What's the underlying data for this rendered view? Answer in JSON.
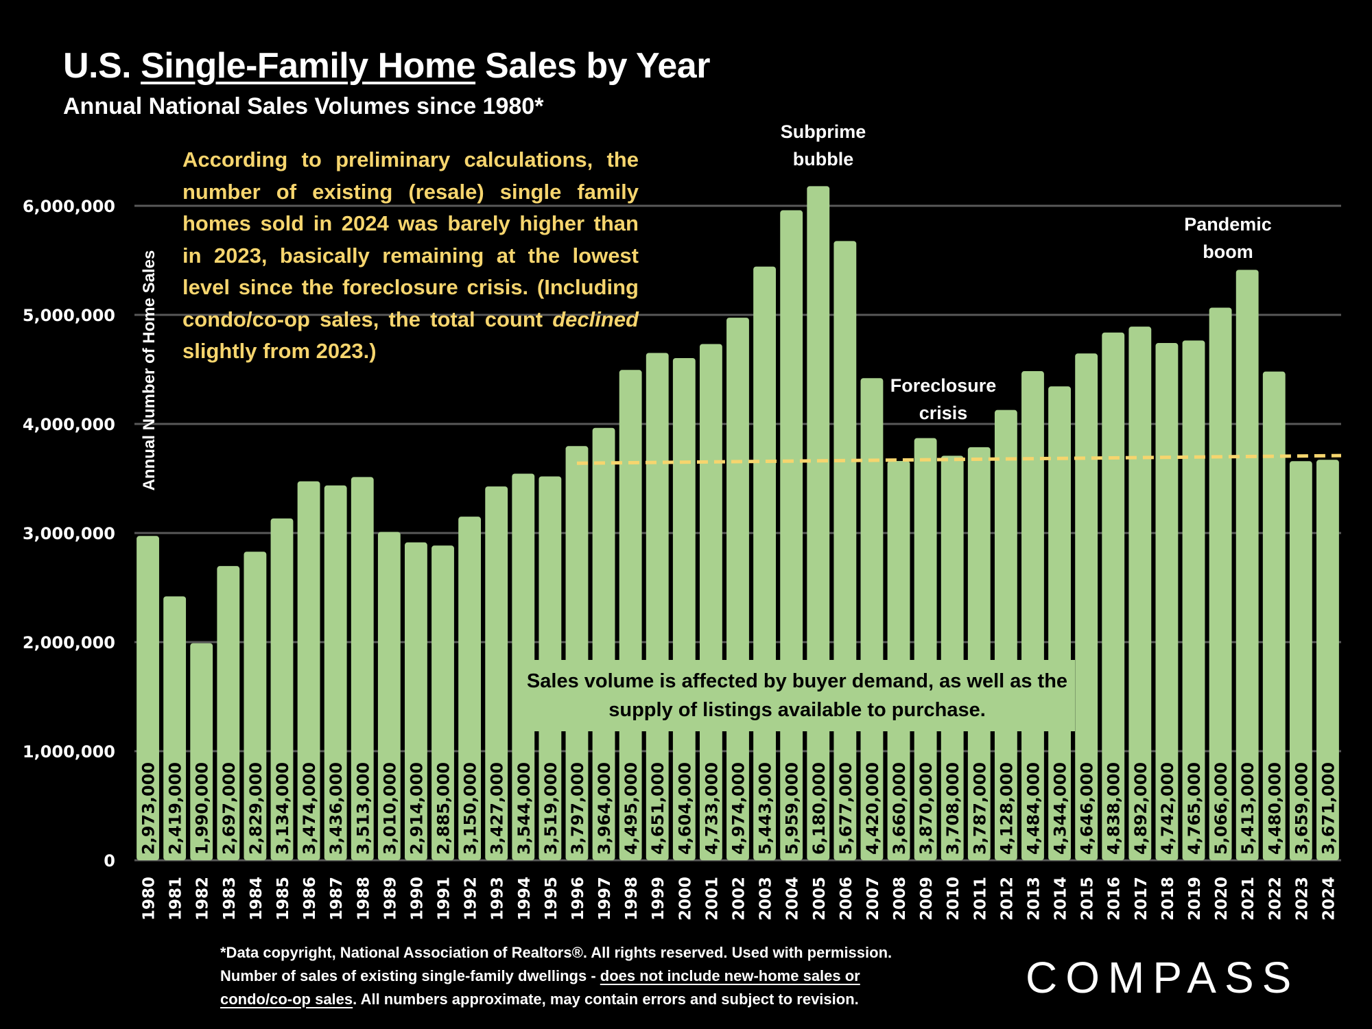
{
  "page": {
    "title_prefix": "U.S. ",
    "title_underlined": "Single-Family Home",
    "title_suffix": " Sales by Year",
    "subtitle": "Annual National Sales Volumes since 1980*",
    "note_part1": "According to preliminary calculations, the number of existing (resale) single family homes sold in 2024 was barely higher than in 2023, basically remaining at the lowest level since the foreclosure crisis. (Including condo/co-op sales, the total count ",
    "note_italic": "declined",
    "note_part2": " slightly from 2023.)",
    "callout": "Sales volume is affected by buyer demand, as well as the supply of listings available to purchase.",
    "footnote_line1": "*Data copyright, National Association of Realtors®. All rights reserved. Used with permission.",
    "footnote_line2_plain": "Number of sales of existing single-family dwellings - ",
    "footnote_line2_underlined": "does not include new-home sales or",
    "footnote_line3_underlined": "condo/co-op sales",
    "footnote_line3_plain": ". All numbers approximate, may contain errors and subject to revision.",
    "logo": "COMPASS"
  },
  "colors": {
    "bar": "#a9d18e",
    "trend": "#f6d56e",
    "grid": "#595959",
    "background": "#000000",
    "note_text": "#f6d56e"
  },
  "chart_data": {
    "type": "bar",
    "title": "U.S. Single-Family Home Sales by Year",
    "subtitle": "Annual National Sales Volumes since 1980*",
    "xlabel": "",
    "ylabel": "Annual Number of Home Sales",
    "ylim": [
      0,
      6000000
    ],
    "yticks": [
      0,
      1000000,
      2000000,
      3000000,
      4000000,
      5000000,
      6000000
    ],
    "ytick_labels": [
      "0",
      "1,000,000",
      "2,000,000",
      "3,000,000",
      "4,000,000",
      "5,000,000",
      "6,000,000"
    ],
    "grid": true,
    "categories": [
      "1980",
      "1981",
      "1982",
      "1983",
      "1984",
      "1985",
      "1986",
      "1987",
      "1988",
      "1989",
      "1990",
      "1991",
      "1992",
      "1993",
      "1994",
      "1995",
      "1996",
      "1997",
      "1998",
      "1999",
      "2000",
      "2001",
      "2002",
      "2003",
      "2004",
      "2005",
      "2006",
      "2007",
      "2008",
      "2009",
      "2010",
      "2011",
      "2012",
      "2013",
      "2014",
      "2015",
      "2016",
      "2017",
      "2018",
      "2019",
      "2020",
      "2021",
      "2022",
      "2023",
      "2024"
    ],
    "values": [
      2973000,
      2419000,
      1990000,
      2697000,
      2829000,
      3134000,
      3474000,
      3436000,
      3513000,
      3010000,
      2914000,
      2885000,
      3150000,
      3427000,
      3544000,
      3519000,
      3797000,
      3964000,
      4495000,
      4651000,
      4604000,
      4733000,
      4974000,
      5443000,
      5959000,
      6180000,
      5677000,
      4420000,
      3660000,
      3870000,
      3708000,
      3787000,
      4128000,
      4484000,
      4344000,
      4646000,
      4838000,
      4892000,
      4742000,
      4765000,
      5066000,
      5413000,
      4480000,
      3659000,
      3671000
    ],
    "data_labels": [
      "2,973,000",
      "2,419,000",
      "1,990,000",
      "2,697,000",
      "2,829,000",
      "3,134,000",
      "3,474,000",
      "3,436,000",
      "3,513,000",
      "3,010,000",
      "2,914,000",
      "2,885,000",
      "3,150,000",
      "3,427,000",
      "3,544,000",
      "3,519,000",
      "3,797,000",
      "3,964,000",
      "4,495,000",
      "4,651,000",
      "4,604,000",
      "4,733,000",
      "4,974,000",
      "5,443,000",
      "5,959,000",
      "6,180,000",
      "5,677,000",
      "4,420,000",
      "3,660,000",
      "3,870,000",
      "3,708,000",
      "3,787,000",
      "4,128,000",
      "4,484,000",
      "4,344,000",
      "4,646,000",
      "4,838,000",
      "4,892,000",
      "4,742,000",
      "4,765,000",
      "5,066,000",
      "5,413,000",
      "4,480,000",
      "3,659,000",
      "3,671,000"
    ],
    "reference_line": {
      "style": "dashed",
      "from_category": "1996",
      "to_category": "2024",
      "start_value": 3640000,
      "end_value": 3710000
    },
    "annotations": [
      {
        "text": "Subprime bubble",
        "near": "2005"
      },
      {
        "text": "Foreclosure crisis",
        "near": "2010"
      },
      {
        "text": "Pandemic boom",
        "near": "2021"
      }
    ]
  }
}
